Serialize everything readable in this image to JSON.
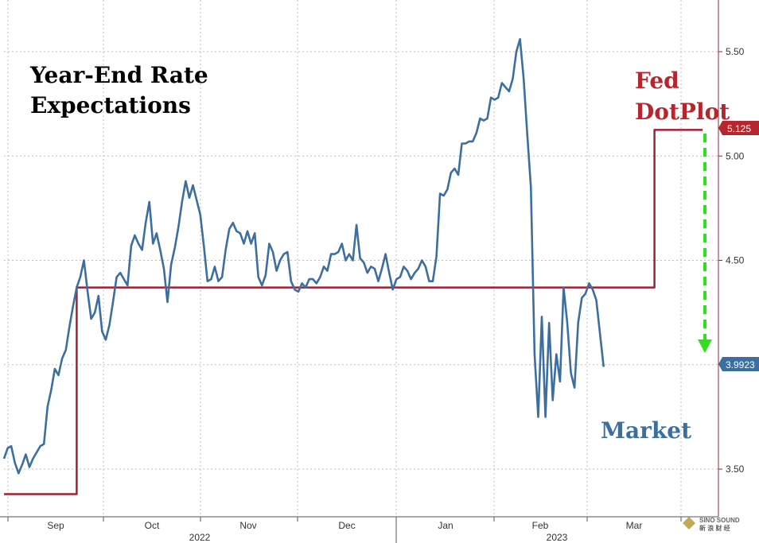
{
  "chart_data": {
    "type": "line",
    "title_lines": [
      "Year-End Rate",
      "Expectations"
    ],
    "annotations": {
      "fed": [
        "Fed",
        "DotPlot"
      ],
      "market": "Market"
    },
    "y_ticks": [
      "3.50",
      "4.50",
      "5.00",
      "5.50"
    ],
    "ylim": [
      3.3,
      5.75
    ],
    "x_months": [
      "Sep",
      "Oct",
      "Nov",
      "Dec",
      "Jan",
      "Feb",
      "Mar"
    ],
    "x_years": [
      "2022",
      "2023"
    ],
    "end_labels": {
      "fed": "5.125",
      "market": "3.9923"
    },
    "colors": {
      "market": "#3c6ea0",
      "fed": "#9b2335",
      "fed_badge": "#b5262f",
      "market_badge": "#3c6ea0",
      "arrow": "#33dd22"
    },
    "x_range": [
      0,
      192
    ],
    "series": [
      {
        "key": "fed",
        "points": [
          [
            0,
            3.38
          ],
          [
            20,
            3.38
          ],
          [
            20,
            4.37
          ],
          [
            179,
            4.37
          ],
          [
            179,
            5.125
          ],
          [
            198,
            5.125
          ]
        ]
      },
      {
        "key": "market",
        "points": [
          [
            0,
            3.55
          ],
          [
            1,
            3.6
          ],
          [
            2,
            3.61
          ],
          [
            3,
            3.53
          ],
          [
            4,
            3.48
          ],
          [
            5,
            3.52
          ],
          [
            6,
            3.57
          ],
          [
            7,
            3.51
          ],
          [
            8,
            3.55
          ],
          [
            9,
            3.58
          ],
          [
            10,
            3.61
          ],
          [
            11,
            3.62
          ],
          [
            12,
            3.8
          ],
          [
            13,
            3.88
          ],
          [
            14,
            3.98
          ],
          [
            15,
            3.95
          ],
          [
            16,
            4.03
          ],
          [
            17,
            4.07
          ],
          [
            18,
            4.18
          ],
          [
            19,
            4.28
          ],
          [
            20,
            4.37
          ],
          [
            21,
            4.42
          ],
          [
            22,
            4.5
          ],
          [
            23,
            4.35
          ],
          [
            24,
            4.22
          ],
          [
            25,
            4.25
          ],
          [
            26,
            4.33
          ],
          [
            27,
            4.16
          ],
          [
            28,
            4.12
          ],
          [
            29,
            4.19
          ],
          [
            30,
            4.3
          ],
          [
            31,
            4.42
          ],
          [
            32,
            4.44
          ],
          [
            33,
            4.41
          ],
          [
            34,
            4.38
          ],
          [
            35,
            4.57
          ],
          [
            36,
            4.62
          ],
          [
            37,
            4.58
          ],
          [
            38,
            4.55
          ],
          [
            39,
            4.68
          ],
          [
            40,
            4.78
          ],
          [
            41,
            4.58
          ],
          [
            42,
            4.63
          ],
          [
            43,
            4.55
          ],
          [
            44,
            4.46
          ],
          [
            45,
            4.3
          ],
          [
            46,
            4.48
          ],
          [
            47,
            4.56
          ],
          [
            48,
            4.66
          ],
          [
            49,
            4.78
          ],
          [
            50,
            4.88
          ],
          [
            51,
            4.8
          ],
          [
            52,
            4.86
          ],
          [
            53,
            4.79
          ],
          [
            54,
            4.72
          ],
          [
            55,
            4.57
          ],
          [
            56,
            4.4
          ],
          [
            57,
            4.41
          ],
          [
            58,
            4.47
          ],
          [
            59,
            4.4
          ],
          [
            60,
            4.42
          ],
          [
            61,
            4.55
          ],
          [
            62,
            4.65
          ],
          [
            63,
            4.68
          ],
          [
            64,
            4.64
          ],
          [
            65,
            4.63
          ],
          [
            66,
            4.58
          ],
          [
            67,
            4.64
          ],
          [
            68,
            4.58
          ],
          [
            69,
            4.63
          ],
          [
            70,
            4.42
          ],
          [
            71,
            4.38
          ],
          [
            72,
            4.43
          ],
          [
            73,
            4.58
          ],
          [
            74,
            4.54
          ],
          [
            75,
            4.45
          ],
          [
            76,
            4.5
          ],
          [
            77,
            4.53
          ],
          [
            78,
            4.54
          ],
          [
            79,
            4.4
          ],
          [
            80,
            4.36
          ],
          [
            81,
            4.35
          ],
          [
            82,
            4.39
          ],
          [
            83,
            4.37
          ],
          [
            84,
            4.41
          ],
          [
            85,
            4.41
          ],
          [
            86,
            4.39
          ],
          [
            87,
            4.42
          ],
          [
            88,
            4.47
          ],
          [
            89,
            4.45
          ],
          [
            90,
            4.53
          ],
          [
            91,
            4.53
          ],
          [
            92,
            4.54
          ],
          [
            93,
            4.58
          ],
          [
            94,
            4.5
          ],
          [
            95,
            4.53
          ],
          [
            96,
            4.5
          ],
          [
            97,
            4.67
          ],
          [
            98,
            4.51
          ],
          [
            99,
            4.49
          ],
          [
            100,
            4.44
          ],
          [
            101,
            4.47
          ],
          [
            102,
            4.46
          ],
          [
            103,
            4.4
          ],
          [
            104,
            4.46
          ],
          [
            105,
            4.53
          ],
          [
            106,
            4.44
          ],
          [
            107,
            4.36
          ],
          [
            108,
            4.41
          ],
          [
            109,
            4.42
          ],
          [
            110,
            4.47
          ],
          [
            111,
            4.45
          ],
          [
            112,
            4.41
          ],
          [
            113,
            4.44
          ],
          [
            114,
            4.46
          ],
          [
            115,
            4.5
          ],
          [
            116,
            4.47
          ],
          [
            117,
            4.4
          ],
          [
            118,
            4.4
          ],
          [
            119,
            4.52
          ],
          [
            120,
            4.82
          ],
          [
            121,
            4.81
          ],
          [
            122,
            4.84
          ],
          [
            123,
            4.92
          ],
          [
            124,
            4.94
          ],
          [
            125,
            4.91
          ],
          [
            126,
            5.06
          ],
          [
            127,
            5.06
          ],
          [
            128,
            5.07
          ],
          [
            129,
            5.07
          ],
          [
            130,
            5.11
          ],
          [
            131,
            5.18
          ],
          [
            132,
            5.17
          ],
          [
            133,
            5.18
          ],
          [
            134,
            5.28
          ],
          [
            135,
            5.27
          ],
          [
            136,
            5.28
          ],
          [
            137,
            5.35
          ],
          [
            138,
            5.33
          ],
          [
            139,
            5.31
          ],
          [
            140,
            5.37
          ],
          [
            141,
            5.5
          ],
          [
            142,
            5.56
          ],
          [
            143,
            5.37
          ],
          [
            144,
            5.1
          ],
          [
            145,
            4.85
          ],
          [
            146,
            4.05
          ],
          [
            147,
            3.75
          ],
          [
            148,
            4.23
          ],
          [
            149,
            3.75
          ],
          [
            150,
            4.2
          ],
          [
            151,
            3.83
          ],
          [
            152,
            4.05
          ],
          [
            153,
            3.92
          ],
          [
            154,
            4.37
          ],
          [
            155,
            4.2
          ],
          [
            156,
            3.96
          ],
          [
            157,
            3.89
          ],
          [
            158,
            4.2
          ],
          [
            159,
            4.32
          ],
          [
            160,
            4.34
          ],
          [
            161,
            4.39
          ],
          [
            162,
            4.36
          ],
          [
            163,
            4.31
          ],
          [
            164,
            4.15
          ],
          [
            165,
            3.99
          ]
        ]
      }
    ],
    "grid": true,
    "legend": "none"
  },
  "watermark": {
    "top": "SINO SOUND",
    "bottom": "新 浪 财 经"
  }
}
